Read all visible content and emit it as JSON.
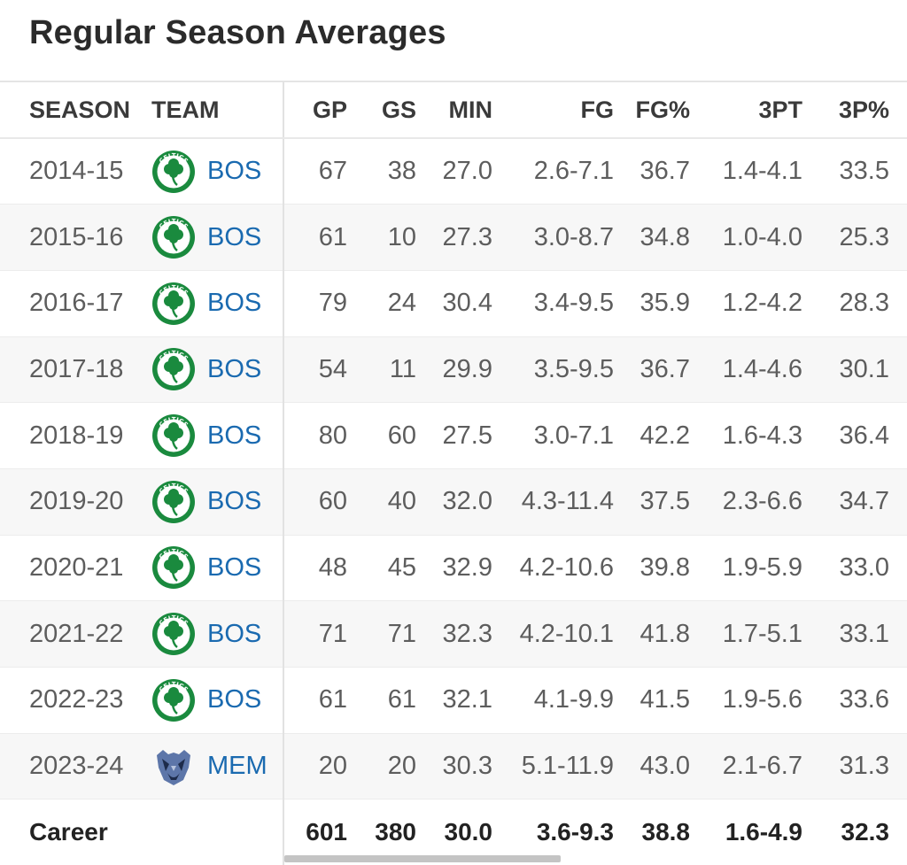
{
  "title": "Regular Season Averages",
  "columns": {
    "season": "SEASON",
    "team": "TEAM",
    "gp": "GP",
    "gs": "GS",
    "min": "MIN",
    "fg": "FG",
    "fgp": "FG%",
    "tpt": "3PT",
    "tpp": "3P%"
  },
  "rows": [
    {
      "season": "2014-15",
      "team": "BOS",
      "gp": "67",
      "gs": "38",
      "min": "27.0",
      "fg": "2.6-7.1",
      "fgp": "36.7",
      "tpt": "1.4-4.1",
      "tpp": "33.5"
    },
    {
      "season": "2015-16",
      "team": "BOS",
      "gp": "61",
      "gs": "10",
      "min": "27.3",
      "fg": "3.0-8.7",
      "fgp": "34.8",
      "tpt": "1.0-4.0",
      "tpp": "25.3"
    },
    {
      "season": "2016-17",
      "team": "BOS",
      "gp": "79",
      "gs": "24",
      "min": "30.4",
      "fg": "3.4-9.5",
      "fgp": "35.9",
      "tpt": "1.2-4.2",
      "tpp": "28.3"
    },
    {
      "season": "2017-18",
      "team": "BOS",
      "gp": "54",
      "gs": "11",
      "min": "29.9",
      "fg": "3.5-9.5",
      "fgp": "36.7",
      "tpt": "1.4-4.6",
      "tpp": "30.1"
    },
    {
      "season": "2018-19",
      "team": "BOS",
      "gp": "80",
      "gs": "60",
      "min": "27.5",
      "fg": "3.0-7.1",
      "fgp": "42.2",
      "tpt": "1.6-4.3",
      "tpp": "36.4"
    },
    {
      "season": "2019-20",
      "team": "BOS",
      "gp": "60",
      "gs": "40",
      "min": "32.0",
      "fg": "4.3-11.4",
      "fgp": "37.5",
      "tpt": "2.3-6.6",
      "tpp": "34.7"
    },
    {
      "season": "2020-21",
      "team": "BOS",
      "gp": "48",
      "gs": "45",
      "min": "32.9",
      "fg": "4.2-10.6",
      "fgp": "39.8",
      "tpt": "1.9-5.9",
      "tpp": "33.0"
    },
    {
      "season": "2021-22",
      "team": "BOS",
      "gp": "71",
      "gs": "71",
      "min": "32.3",
      "fg": "4.2-10.1",
      "fgp": "41.8",
      "tpt": "1.7-5.1",
      "tpp": "33.1"
    },
    {
      "season": "2022-23",
      "team": "BOS",
      "gp": "61",
      "gs": "61",
      "min": "32.1",
      "fg": "4.1-9.9",
      "fgp": "41.5",
      "tpt": "1.9-5.6",
      "tpp": "33.6"
    },
    {
      "season": "2023-24",
      "team": "MEM",
      "gp": "20",
      "gs": "20",
      "min": "30.3",
      "fg": "5.1-11.9",
      "fgp": "43.0",
      "tpt": "2.1-6.7",
      "tpp": "31.3"
    }
  ],
  "career": {
    "label": "Career",
    "gp": "601",
    "gs": "380",
    "min": "30.0",
    "fg": "3.6-9.3",
    "fgp": "38.8",
    "tpt": "1.6-4.9",
    "tpp": "32.3"
  },
  "logos": {
    "BOS": {
      "icon": "celtics-logo-icon",
      "color": "#1a8a3e",
      "text": "CELTICS"
    },
    "MEM": {
      "icon": "grizzlies-logo-icon",
      "color": "#5d76a9"
    }
  },
  "colors": {
    "team_link": "#1a6ab0",
    "row_alt": "#f7f7f7"
  }
}
